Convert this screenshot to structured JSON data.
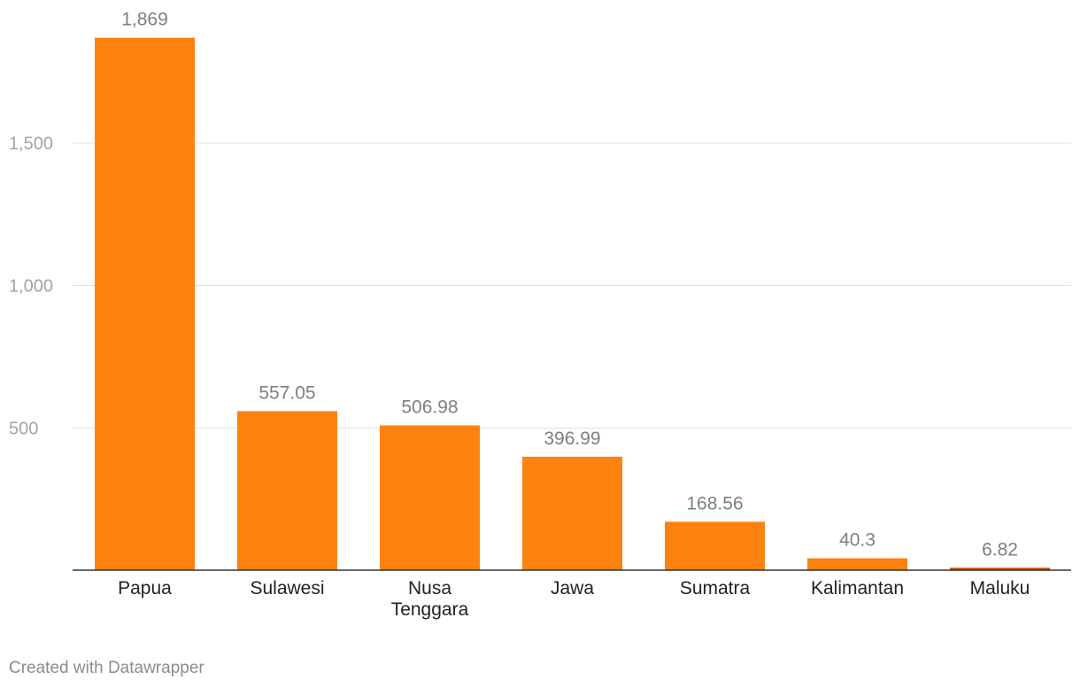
{
  "chart_data": {
    "type": "bar",
    "categories": [
      [
        "Papua"
      ],
      [
        "Sulawesi"
      ],
      [
        "Nusa",
        "Tenggara"
      ],
      [
        "Jawa"
      ],
      [
        "Sumatra"
      ],
      [
        "Kalimantan"
      ],
      [
        "Maluku"
      ]
    ],
    "values": [
      1869,
      557.05,
      506.98,
      396.99,
      168.56,
      40.3,
      6.82
    ],
    "value_labels": [
      "1,869",
      "557.05",
      "506.98",
      "396.99",
      "168.56",
      "40.3",
      "6.82"
    ],
    "y_ticks": [
      500,
      1000,
      1500
    ],
    "y_tick_labels": [
      "500",
      "1,000",
      "1,500"
    ],
    "ylim": [
      0,
      2000
    ],
    "grid": true,
    "colors": {
      "bar": "#fd8210",
      "bar_small": "#c24f00",
      "grid": "#e0e0e0",
      "axis": "#333333",
      "tick_label": "#a3a3a3",
      "value_label": "#7f7f7f",
      "category_label": "#222222"
    }
  },
  "footer": {
    "credit": "Created with Datawrapper"
  }
}
